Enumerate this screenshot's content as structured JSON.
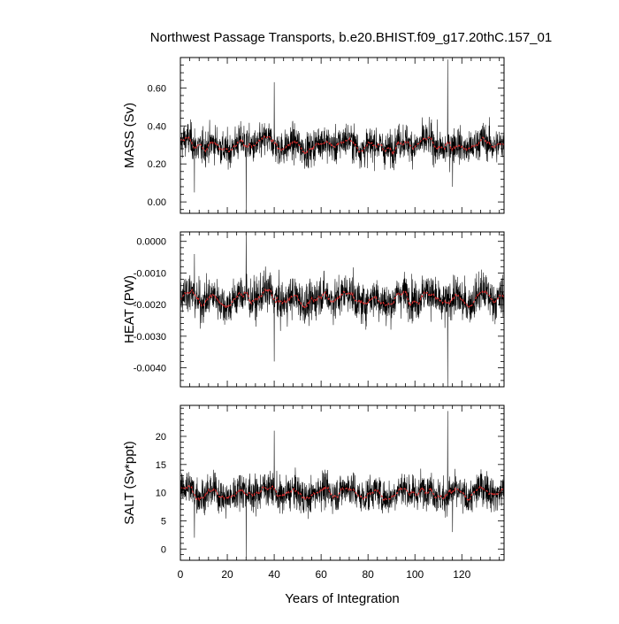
{
  "chart_data": {
    "title": "Northwest Passage Transports, b.e20.BHIST.f09_g17.20thC.157_01",
    "type": "line",
    "xlabel": "Years of Integration",
    "xlim": [
      0,
      138
    ],
    "xticks": [
      0,
      20,
      40,
      60,
      80,
      100,
      120
    ],
    "series_colors": {
      "raw": "#000000",
      "smoothed": "#e03030"
    },
    "grid": false,
    "panels": [
      {
        "key": "mass",
        "ylabel": "MASS (Sv)",
        "ylim": [
          -0.06,
          0.76
        ],
        "yticks": [
          0.0,
          0.2,
          0.4,
          0.6
        ],
        "ytick_labels": [
          "0.00",
          "0.20",
          "0.40",
          "0.60"
        ],
        "mean": 0.3,
        "noise": 0.065,
        "smooth_amp": 0.02,
        "spikes": [
          {
            "x": 28.0,
            "y": -0.06
          },
          {
            "x": 40.0,
            "y": 0.63
          },
          {
            "x": 114.0,
            "y": 0.75
          },
          {
            "x": 116.0,
            "y": 0.08
          },
          {
            "x": 6.0,
            "y": 0.05
          }
        ]
      },
      {
        "key": "heat",
        "ylabel": "HEAT (PW)",
        "ylim": [
          -0.0046,
          0.0003
        ],
        "yticks": [
          0.0,
          -0.001,
          -0.002,
          -0.003,
          -0.004
        ],
        "ytick_labels": [
          "0.0000",
          "-0.0010",
          "-0.0020",
          "-0.0030",
          "-0.0040"
        ],
        "mean": -0.0018,
        "noise": 0.00045,
        "smooth_amp": 0.00015,
        "spikes": [
          {
            "x": 28.0,
            "y": 0.0003
          },
          {
            "x": 40.0,
            "y": -0.0038
          },
          {
            "x": 114.0,
            "y": -0.0046
          },
          {
            "x": 6.0,
            "y": -0.0004
          }
        ]
      },
      {
        "key": "salt",
        "ylabel": "SALT (Sv*ppt)",
        "ylim": [
          -2.0,
          25.5
        ],
        "yticks": [
          0,
          5,
          10,
          15,
          20
        ],
        "ytick_labels": [
          "0",
          "5",
          "10",
          "15",
          "20"
        ],
        "mean": 10.0,
        "noise": 2.2,
        "smooth_amp": 0.7,
        "spikes": [
          {
            "x": 28.0,
            "y": -1.5
          },
          {
            "x": 40.0,
            "y": 21.0
          },
          {
            "x": 114.0,
            "y": 24.5
          },
          {
            "x": 116.0,
            "y": 3.0
          },
          {
            "x": 6.0,
            "y": 2.0
          }
        ]
      }
    ]
  }
}
